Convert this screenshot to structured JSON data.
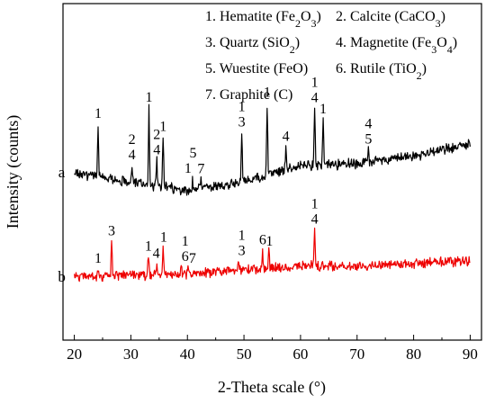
{
  "chart_data": {
    "type": "line",
    "xlabel": "2-Theta scale (°)",
    "ylabel": "Intensity (counts)",
    "xlim": [
      18,
      92
    ],
    "x_ticks": [
      "20",
      "30",
      "40",
      "50",
      "60",
      "70",
      "80",
      "90"
    ],
    "grid": false,
    "legend_placement": "top",
    "legend": [
      {
        "num": "1.",
        "name": "Hematite",
        "formula": [
          {
            "t": " (Fe"
          },
          {
            "t": "2",
            "sub": true
          },
          {
            "t": "O"
          },
          {
            "t": "3",
            "sub": true
          },
          {
            "t": ")"
          }
        ]
      },
      {
        "num": "2.",
        "name": "Calcite",
        "formula": [
          {
            "t": " (CaCO"
          },
          {
            "t": "3",
            "sub": true
          },
          {
            "t": ")"
          }
        ]
      },
      {
        "num": "3.",
        "name": "Quartz",
        "formula": [
          {
            "t": " (SiO"
          },
          {
            "t": "2",
            "sub": true
          },
          {
            "t": ")"
          }
        ]
      },
      {
        "num": "4.",
        "name": "Magnetite",
        "formula": [
          {
            "t": " (Fe"
          },
          {
            "t": "3",
            "sub": true
          },
          {
            "t": "O"
          },
          {
            "t": "4",
            "sub": true
          },
          {
            "t": ")"
          }
        ]
      },
      {
        "num": "5.",
        "name": "Wuestite",
        "formula": [
          {
            "t": " (FeO)"
          }
        ]
      },
      {
        "num": "6.",
        "name": "Rutile",
        "formula": [
          {
            "t": " (TiO"
          },
          {
            "t": "2",
            "sub": true
          },
          {
            "t": ")"
          }
        ]
      },
      {
        "num": "7.",
        "name": "Graphite",
        "formula": [
          {
            "t": " (C)"
          }
        ]
      }
    ],
    "series": [
      {
        "name": "a",
        "color": "#000000",
        "baseline": [
          [
            20,
            192
          ],
          [
            40,
            212
          ],
          [
            50,
            202
          ],
          [
            60,
            184
          ],
          [
            70,
            182
          ],
          [
            80,
            174
          ],
          [
            90,
            160
          ]
        ],
        "peaks": [
          [
            24.2,
            58
          ],
          [
            30.2,
            18
          ],
          [
            33.2,
            85
          ],
          [
            34.6,
            28
          ],
          [
            35.7,
            55
          ],
          [
            40.9,
            12
          ],
          [
            42.4,
            10
          ],
          [
            49.6,
            55
          ],
          [
            54.1,
            80
          ],
          [
            57.4,
            25
          ],
          [
            62.5,
            63
          ],
          [
            64.0,
            50
          ],
          [
            72.0,
            14
          ]
        ],
        "labels": [
          {
            "text": "1",
            "x": 24.2,
            "stack": 1
          },
          {
            "text": "2",
            "x": 30.2,
            "stack": 2
          },
          {
            "text": "4",
            "x": 30.2,
            "stack": 1
          },
          {
            "text": "1",
            "x": 33.2,
            "stack": 1
          },
          {
            "text": "2",
            "x": 34.6,
            "stack": 2
          },
          {
            "text": "4",
            "x": 34.6,
            "stack": 1
          },
          {
            "text": "1",
            "x": 35.7,
            "stack": 1
          },
          {
            "text": "1",
            "x": 40.1,
            "stack": 1
          },
          {
            "text": "5",
            "x": 41.0,
            "stack": 2
          },
          {
            "text": "7",
            "x": 42.4,
            "stack": 1
          },
          {
            "text": "1",
            "x": 49.6,
            "stack": 2
          },
          {
            "text": "3",
            "x": 49.6,
            "stack": 1
          },
          {
            "text": "1",
            "x": 54.1,
            "stack": 1
          },
          {
            "text": "4",
            "x": 57.4,
            "stack": 1
          },
          {
            "text": "1",
            "x": 62.5,
            "stack": 2
          },
          {
            "text": "4",
            "x": 62.5,
            "stack": 1
          },
          {
            "text": "1",
            "x": 64.0,
            "stack": 1
          },
          {
            "text": "4",
            "x": 72.0,
            "stack": 2
          },
          {
            "text": "5",
            "x": 72.0,
            "stack": 1
          }
        ]
      },
      {
        "name": "b",
        "color": "#ee0000",
        "baseline": [
          [
            20,
            308
          ],
          [
            30,
            306
          ],
          [
            40,
            305
          ],
          [
            50,
            300
          ],
          [
            60,
            295
          ],
          [
            70,
            296
          ],
          [
            80,
            293
          ],
          [
            90,
            290
          ]
        ],
        "peaks": [
          [
            24.2,
            8
          ],
          [
            26.6,
            38
          ],
          [
            33.1,
            20
          ],
          [
            34.6,
            12
          ],
          [
            35.7,
            30
          ],
          [
            38.9,
            8
          ],
          [
            40.1,
            6
          ],
          [
            49.0,
            10
          ],
          [
            53.3,
            20
          ],
          [
            54.4,
            18
          ],
          [
            62.5,
            40
          ]
        ],
        "labels": [
          {
            "text": "1",
            "x": 24.2,
            "stack": 1
          },
          {
            "text": "3",
            "x": 26.6,
            "stack": 1
          },
          {
            "text": "1",
            "x": 33.1,
            "stack": 1
          },
          {
            "text": "4",
            "x": 34.5,
            "stack": 1
          },
          {
            "text": "1",
            "x": 35.8,
            "stack": 1
          },
          {
            "text": "1",
            "x": 39.6,
            "stack": 2
          },
          {
            "text": "6",
            "x": 39.6,
            "stack": 1
          },
          {
            "text": "7",
            "x": 40.9,
            "stack": 1
          },
          {
            "text": "1",
            "x": 49.6,
            "stack": 2
          },
          {
            "text": "3",
            "x": 49.6,
            "stack": 1
          },
          {
            "text": "6",
            "x": 53.3,
            "stack": 1
          },
          {
            "text": "1",
            "x": 54.5,
            "stack": 1
          },
          {
            "text": "1",
            "x": 62.5,
            "stack": 2
          },
          {
            "text": "4",
            "x": 62.5,
            "stack": 1
          }
        ]
      }
    ]
  }
}
